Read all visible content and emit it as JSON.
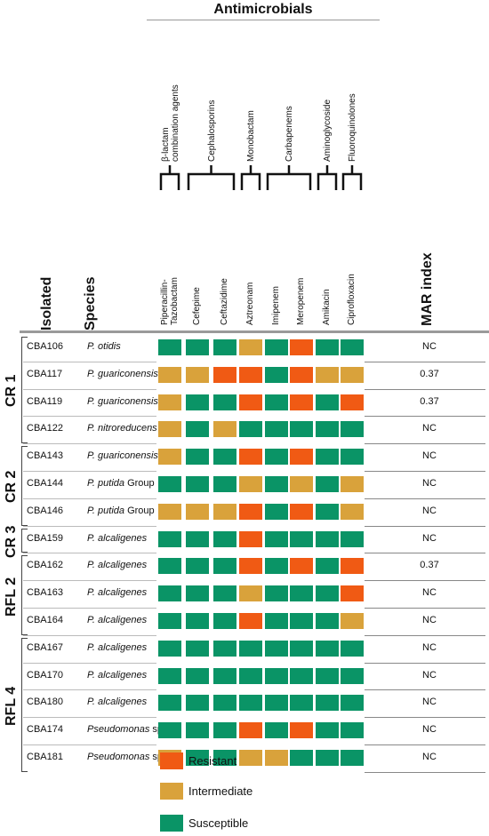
{
  "title": "Antimicrobials",
  "classes": [
    {
      "label": "β-lactam combination agents",
      "lines": [
        "β-lactam",
        "combination agents"
      ],
      "cols": [
        0
      ]
    },
    {
      "label": "Cephalosporins",
      "lines": [
        "Cephalosporins"
      ],
      "cols": [
        1,
        2
      ]
    },
    {
      "label": "Monobactam",
      "lines": [
        "Monobactam"
      ],
      "cols": [
        3
      ]
    },
    {
      "label": "Carbapenems",
      "lines": [
        "Carbapenems"
      ],
      "cols": [
        4,
        5
      ]
    },
    {
      "label": "Aminoglycoside",
      "lines": [
        "Aminoglycoside"
      ],
      "cols": [
        6
      ]
    },
    {
      "label": "Fluoroquinolones",
      "lines": [
        "Fluoroquinolones"
      ],
      "cols": [
        7
      ]
    }
  ],
  "headers": {
    "isolated": "Isolated",
    "species": "Species",
    "mar": "MAR index"
  },
  "antibiotics": [
    {
      "lines": [
        "Piperacillin-",
        "Tazobactam"
      ]
    },
    {
      "lines": [
        "Cefepime"
      ]
    },
    {
      "lines": [
        "Ceftazidime"
      ]
    },
    {
      "lines": [
        "Aztreonam"
      ]
    },
    {
      "lines": [
        "Imipenem"
      ]
    },
    {
      "lines": [
        "Meropenem"
      ]
    },
    {
      "lines": [
        "Amikacin"
      ]
    },
    {
      "lines": [
        "Ciprofloxacin"
      ]
    }
  ],
  "colors": {
    "R": "#f05a14",
    "I": "#d9a23b",
    "S": "#0a9466"
  },
  "legend": [
    {
      "key": "R",
      "label": "Resistant"
    },
    {
      "key": "I",
      "label": "Intermediate"
    },
    {
      "key": "S",
      "label": "Susceptible"
    }
  ],
  "groups": [
    {
      "label": "CR 1",
      "rows": [
        0,
        3
      ]
    },
    {
      "label": "CR 2",
      "rows": [
        4,
        6
      ]
    },
    {
      "label": "CR 3",
      "rows": [
        7,
        7
      ]
    },
    {
      "label": "RFL 2",
      "rows": [
        8,
        10
      ]
    },
    {
      "label": "RFL 4",
      "rows": [
        11,
        15
      ]
    }
  ],
  "rows": [
    {
      "isolate": "CBA106",
      "species": "P. otidis",
      "suffix": "",
      "mar": "NC",
      "results": [
        "S",
        "S",
        "S",
        "I",
        "S",
        "R",
        "S",
        "S"
      ]
    },
    {
      "isolate": "CBA117",
      "species": "P. guariconensis",
      "suffix": "",
      "mar": "0.37",
      "results": [
        "I",
        "I",
        "R",
        "R",
        "S",
        "R",
        "I",
        "I"
      ]
    },
    {
      "isolate": "CBA119",
      "species": "P. guariconensis",
      "suffix": "",
      "mar": "0.37",
      "results": [
        "I",
        "S",
        "S",
        "R",
        "S",
        "R",
        "S",
        "R"
      ]
    },
    {
      "isolate": "CBA122",
      "species": "P. nitroreducens",
      "suffix": "",
      "mar": "NC",
      "results": [
        "I",
        "S",
        "I",
        "S",
        "S",
        "S",
        "S",
        "S"
      ]
    },
    {
      "isolate": "CBA143",
      "species": "P. guariconensis",
      "suffix": "",
      "mar": "NC",
      "results": [
        "I",
        "S",
        "S",
        "R",
        "S",
        "R",
        "S",
        "S"
      ]
    },
    {
      "isolate": "CBA144",
      "species": "P. putida",
      "suffix": " Group",
      "mar": "NC",
      "results": [
        "S",
        "S",
        "S",
        "I",
        "S",
        "I",
        "S",
        "I"
      ]
    },
    {
      "isolate": "CBA146",
      "species": "P. putida",
      "suffix": " Group",
      "mar": "NC",
      "results": [
        "I",
        "I",
        "I",
        "R",
        "S",
        "R",
        "S",
        "I"
      ]
    },
    {
      "isolate": "CBA159",
      "species": "P. alcaligenes",
      "suffix": "",
      "mar": "NC",
      "results": [
        "S",
        "S",
        "S",
        "R",
        "S",
        "S",
        "S",
        "S"
      ]
    },
    {
      "isolate": "CBA162",
      "species": "P. alcaligenes",
      "suffix": "",
      "mar": "0.37",
      "results": [
        "S",
        "S",
        "S",
        "R",
        "S",
        "R",
        "S",
        "R"
      ]
    },
    {
      "isolate": "CBA163",
      "species": "P. alcaligenes",
      "suffix": "",
      "mar": "NC",
      "results": [
        "S",
        "S",
        "S",
        "I",
        "S",
        "S",
        "S",
        "R"
      ]
    },
    {
      "isolate": "CBA164",
      "species": "P. alcaligenes",
      "suffix": "",
      "mar": "NC",
      "results": [
        "S",
        "S",
        "S",
        "R",
        "S",
        "S",
        "S",
        "I"
      ]
    },
    {
      "isolate": "CBA167",
      "species": "P. alcaligenes",
      "suffix": "",
      "mar": "NC",
      "results": [
        "S",
        "S",
        "S",
        "S",
        "S",
        "S",
        "S",
        "S"
      ]
    },
    {
      "isolate": "CBA170",
      "species": "P. alcaligenes",
      "suffix": "",
      "mar": "NC",
      "results": [
        "S",
        "S",
        "S",
        "S",
        "S",
        "S",
        "S",
        "S"
      ]
    },
    {
      "isolate": "CBA180",
      "species": "P. alcaligenes",
      "suffix": "",
      "mar": "NC",
      "results": [
        "S",
        "S",
        "S",
        "S",
        "S",
        "S",
        "S",
        "S"
      ]
    },
    {
      "isolate": "CBA174",
      "species": "Pseudomonas",
      "suffix": " sp.",
      "mar": "NC",
      "results": [
        "S",
        "S",
        "S",
        "R",
        "S",
        "R",
        "S",
        "S"
      ]
    },
    {
      "isolate": "CBA181",
      "species": "Pseudomonas",
      "suffix": " sp.",
      "mar": "NC",
      "results": [
        "I",
        "S",
        "S",
        "I",
        "I",
        "S",
        "S",
        "S"
      ]
    }
  ]
}
